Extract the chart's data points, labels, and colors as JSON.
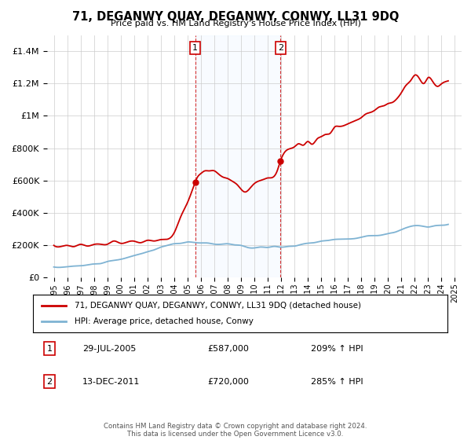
{
  "title": "71, DEGANWY QUAY, DEGANWY, CONWY, LL31 9DQ",
  "subtitle": "Price paid vs. HM Land Registry's House Price Index (HPI)",
  "legend_label_red": "71, DEGANWY QUAY, DEGANWY, CONWY, LL31 9DQ (detached house)",
  "legend_label_blue": "HPI: Average price, detached house, Conwy",
  "annotation1_date": "29-JUL-2005",
  "annotation1_price": "£587,000",
  "annotation1_hpi": "209% ↑ HPI",
  "annotation1_year": 2005.57,
  "annotation1_value": 587000,
  "annotation2_date": "13-DEC-2011",
  "annotation2_price": "£720,000",
  "annotation2_hpi": "285% ↑ HPI",
  "annotation2_year": 2011.95,
  "annotation2_value": 720000,
  "footer": "Contains HM Land Registry data © Crown copyright and database right 2024.\nThis data is licensed under the Open Government Licence v3.0.",
  "ylim": [
    0,
    1500000
  ],
  "xlim_start": 1994.5,
  "xlim_end": 2025.5,
  "red_color": "#cc0000",
  "blue_color": "#7fb3d3",
  "shaded_color": "#ddeeff",
  "background_color": "#ffffff",
  "grid_color": "#cccccc",
  "hpi_data_x": [
    1995.0,
    1995.5,
    1996.0,
    1996.5,
    1997.0,
    1997.5,
    1998.0,
    1998.5,
    1999.0,
    1999.5,
    2000.0,
    2000.5,
    2001.0,
    2001.5,
    2002.0,
    2002.5,
    2003.0,
    2003.5,
    2004.0,
    2004.5,
    2005.0,
    2005.5,
    2006.0,
    2006.5,
    2007.0,
    2007.5,
    2008.0,
    2008.5,
    2009.0,
    2009.5,
    2010.0,
    2010.5,
    2011.0,
    2011.5,
    2012.0,
    2012.5,
    2013.0,
    2013.5,
    2014.0,
    2014.5,
    2015.0,
    2015.5,
    2016.0,
    2016.5,
    2017.0,
    2017.5,
    2018.0,
    2018.5,
    2019.0,
    2019.5,
    2020.0,
    2020.5,
    2021.0,
    2021.5,
    2022.0,
    2022.5,
    2023.0,
    2023.5,
    2024.0,
    2024.5
  ],
  "hpi_data_y": [
    60000,
    62000,
    65000,
    68000,
    72000,
    76000,
    82000,
    88000,
    95000,
    103000,
    112000,
    122000,
    133000,
    145000,
    158000,
    172000,
    185000,
    197000,
    207000,
    213000,
    215000,
    215000,
    213000,
    208000,
    205000,
    207000,
    208000,
    205000,
    195000,
    185000,
    183000,
    185000,
    188000,
    190000,
    190000,
    192000,
    195000,
    200000,
    207000,
    215000,
    222000,
    228000,
    233000,
    237000,
    240000,
    243000,
    247000,
    252000,
    257000,
    262000,
    267000,
    278000,
    295000,
    310000,
    320000,
    318000,
    314000,
    318000,
    322000,
    325000
  ],
  "red_data_x": [
    1995.0,
    1995.5,
    1996.0,
    1996.5,
    1997.0,
    1997.5,
    1998.0,
    1998.5,
    1999.0,
    1999.5,
    2000.0,
    2000.5,
    2001.0,
    2001.5,
    2002.0,
    2002.5,
    2003.0,
    2003.5,
    2004.0,
    2004.5,
    2005.0,
    2005.57,
    2005.7,
    2006.0,
    2006.3,
    2006.6,
    2007.0,
    2007.3,
    2007.7,
    2008.0,
    2008.3,
    2008.7,
    2009.0,
    2009.3,
    2009.7,
    2010.0,
    2010.3,
    2010.7,
    2011.0,
    2011.3,
    2011.7,
    2011.95,
    2012.2,
    2012.5,
    2013.0,
    2013.3,
    2013.7,
    2014.0,
    2014.3,
    2014.7,
    2015.0,
    2015.3,
    2015.7,
    2016.0,
    2016.3,
    2016.7,
    2017.0,
    2017.3,
    2017.7,
    2018.0,
    2018.3,
    2018.7,
    2019.0,
    2019.3,
    2019.7,
    2020.0,
    2020.3,
    2020.7,
    2021.0,
    2021.3,
    2021.7,
    2022.0,
    2022.3,
    2022.7,
    2023.0,
    2023.3,
    2023.7,
    2024.0,
    2024.3,
    2024.5
  ],
  "red_data_y": [
    195000,
    193000,
    196000,
    198000,
    200000,
    201000,
    203000,
    205000,
    208000,
    210000,
    213000,
    216000,
    218000,
    220000,
    222000,
    225000,
    228000,
    240000,
    280000,
    370000,
    460000,
    587000,
    610000,
    640000,
    665000,
    670000,
    668000,
    650000,
    630000,
    615000,
    600000,
    575000,
    545000,
    530000,
    555000,
    580000,
    600000,
    610000,
    615000,
    620000,
    660000,
    720000,
    760000,
    790000,
    810000,
    830000,
    820000,
    830000,
    840000,
    855000,
    870000,
    880000,
    900000,
    920000,
    930000,
    940000,
    950000,
    965000,
    975000,
    990000,
    1005000,
    1020000,
    1035000,
    1050000,
    1060000,
    1075000,
    1090000,
    1105000,
    1150000,
    1190000,
    1220000,
    1250000,
    1230000,
    1210000,
    1230000,
    1210000,
    1185000,
    1200000,
    1215000,
    1220000
  ]
}
